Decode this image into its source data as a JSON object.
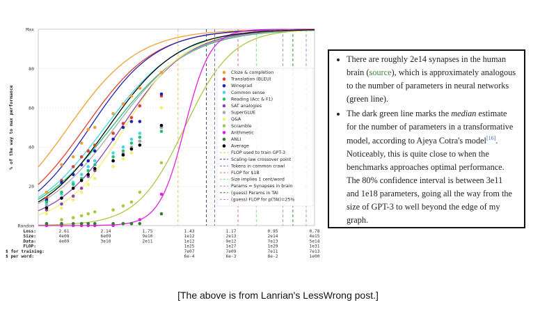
{
  "chart_data": {
    "type": "scatter",
    "ylabel": "% of the way to max performance",
    "y_ticks": [
      "20",
      "40",
      "60",
      "80"
    ],
    "y_top_label": "Max",
    "y_bottom_label": "Random",
    "ylim": [
      0,
      100
    ],
    "x_rows": [
      {
        "label": "Loss:",
        "values": [
          "2.61",
          "2.14",
          "1.75",
          "1.43",
          "1.17",
          "0.95",
          "0.78"
        ]
      },
      {
        "label": "Size:",
        "values": [
          "4e08",
          "6e09",
          "9e10",
          "1e12",
          "2e13",
          "2e14",
          "4e15"
        ]
      },
      {
        "label": "Data:",
        "values": [
          "4e09",
          "3e10",
          "2e11",
          "1e12",
          "9e12",
          "7e13",
          "5e14"
        ]
      },
      {
        "label": "FLOP:",
        "values": [
          "",
          "",
          "",
          "1e25",
          "1e27",
          "1e29",
          "1e31"
        ]
      },
      {
        "label": "$ for training:",
        "values": [
          "",
          "",
          "",
          "7e07",
          "7e09",
          "7e11",
          "7e13"
        ]
      },
      {
        "label": "$ per word:",
        "values": [
          "",
          "",
          "",
          "6e-4",
          "6e-3",
          "8e-2",
          "1e00"
        ]
      }
    ],
    "series": [
      {
        "name": "Cloze & completion",
        "color": "#f0a030",
        "midpoint": 0.9,
        "steepness": 0.95,
        "points": [
          [
            0.25,
            17
          ],
          [
            0.7,
            31
          ],
          [
            1.05,
            35
          ],
          [
            1.3,
            42
          ],
          [
            1.5,
            49
          ],
          [
            1.7,
            50
          ],
          [
            2.25,
            57
          ],
          [
            2.55,
            62
          ],
          [
            2.8,
            66
          ],
          [
            3.05,
            70
          ],
          [
            3.7,
            78
          ]
        ]
      },
      {
        "name": "Translation (BLEU)",
        "color": "#e04030",
        "midpoint": 1.4,
        "steepness": 0.95,
        "points": [
          [
            0.25,
            14
          ],
          [
            0.7,
            23
          ],
          [
            1.05,
            30
          ],
          [
            1.3,
            35
          ],
          [
            1.5,
            38
          ],
          [
            1.7,
            41
          ],
          [
            2.25,
            47
          ],
          [
            2.55,
            52
          ],
          [
            2.8,
            55
          ],
          [
            3.05,
            61
          ],
          [
            3.7,
            66
          ]
        ]
      },
      {
        "name": "Winograd",
        "color": "#2020b8",
        "midpoint": 1.55,
        "steepness": 1.0,
        "points": [
          [
            0.25,
            13
          ],
          [
            0.7,
            22
          ],
          [
            1.05,
            26
          ],
          [
            1.3,
            31
          ],
          [
            1.5,
            33
          ],
          [
            1.7,
            38
          ],
          [
            2.25,
            44
          ],
          [
            2.55,
            50
          ],
          [
            2.8,
            53
          ],
          [
            3.05,
            53
          ],
          [
            3.7,
            67
          ]
        ]
      },
      {
        "name": "Common sense",
        "color": "#40d8e8",
        "midpoint": 2.0,
        "steepness": 0.9,
        "points": [
          [
            0.25,
            11
          ],
          [
            0.7,
            16
          ],
          [
            1.05,
            22
          ],
          [
            1.3,
            26
          ],
          [
            1.5,
            30
          ],
          [
            1.7,
            33
          ],
          [
            2.25,
            37
          ],
          [
            2.55,
            40
          ],
          [
            2.8,
            44
          ],
          [
            3.05,
            47
          ],
          [
            3.7,
            50
          ]
        ]
      },
      {
        "name": "Reading (Acc & F1)",
        "color": "#28c070",
        "midpoint": 2.2,
        "steepness": 0.85,
        "points": [
          [
            0.25,
            12
          ],
          [
            0.7,
            17
          ],
          [
            1.05,
            21
          ],
          [
            1.3,
            24
          ],
          [
            1.5,
            28
          ],
          [
            1.7,
            31
          ],
          [
            2.25,
            35
          ],
          [
            2.55,
            38
          ],
          [
            2.8,
            42
          ],
          [
            3.05,
            45
          ],
          [
            3.7,
            48
          ]
        ]
      },
      {
        "name": "SAT analogies",
        "color": "#9040b0",
        "midpoint": 2.5,
        "steepness": 1.0,
        "points": [
          [
            0.25,
            8
          ],
          [
            0.7,
            11
          ],
          [
            1.05,
            15
          ],
          [
            1.3,
            19
          ],
          [
            1.5,
            25
          ],
          [
            1.7,
            28
          ],
          [
            2.25,
            33
          ],
          [
            2.55,
            36
          ],
          [
            2.8,
            39
          ],
          [
            3.05,
            43
          ],
          [
            3.7,
            50
          ]
        ]
      },
      {
        "name": "SuperGLUE",
        "color": "#a8a8a8",
        "midpoint": 2.3,
        "steepness": 0.9,
        "points": [
          [
            0.25,
            10
          ],
          [
            0.7,
            14
          ],
          [
            1.05,
            19
          ],
          [
            1.3,
            23
          ],
          [
            1.5,
            26
          ],
          [
            1.7,
            29
          ],
          [
            2.25,
            33
          ],
          [
            2.55,
            37
          ],
          [
            2.8,
            40
          ],
          [
            3.05,
            43
          ],
          [
            3.7,
            50
          ]
        ]
      },
      {
        "name": "Q&A",
        "color": "#f2f070",
        "midpoint": 2.6,
        "steepness": 1.1,
        "points": [
          [
            0.25,
            6
          ],
          [
            0.7,
            9
          ],
          [
            1.05,
            13
          ],
          [
            1.3,
            17
          ],
          [
            1.5,
            21
          ],
          [
            1.7,
            24
          ],
          [
            2.25,
            30
          ],
          [
            2.55,
            34
          ],
          [
            2.8,
            37
          ],
          [
            3.05,
            41
          ],
          [
            3.7,
            60
          ]
        ]
      },
      {
        "name": "Scramble",
        "color": "#a8c840",
        "midpoint": 4.4,
        "steepness": 1.4,
        "points": [
          [
            0.25,
            1
          ],
          [
            0.7,
            3
          ],
          [
            1.05,
            4
          ],
          [
            1.3,
            5
          ],
          [
            1.5,
            6
          ],
          [
            1.7,
            7
          ],
          [
            2.25,
            8
          ],
          [
            2.55,
            10
          ],
          [
            2.8,
            12
          ],
          [
            3.05,
            17
          ],
          [
            3.7,
            32
          ]
        ]
      },
      {
        "name": "Arithmetic",
        "color": "#e020e0",
        "midpoint": 4.4,
        "steepness": 2.6,
        "points": [
          [
            0.25,
            0
          ],
          [
            0.7,
            0
          ],
          [
            1.05,
            0
          ],
          [
            1.3,
            0
          ],
          [
            1.5,
            0
          ],
          [
            1.7,
            0
          ],
          [
            2.25,
            0
          ],
          [
            2.55,
            1
          ],
          [
            2.8,
            1
          ],
          [
            3.05,
            3
          ],
          [
            3.7,
            16
          ]
        ]
      },
      {
        "name": "ANLI",
        "color": "#2e7d32",
        "midpoint": null,
        "steepness": null,
        "points": [
          [
            0.25,
            1
          ],
          [
            0.7,
            1
          ],
          [
            1.05,
            1
          ],
          [
            1.3,
            1
          ],
          [
            1.5,
            1
          ],
          [
            1.7,
            1
          ],
          [
            2.25,
            1
          ],
          [
            2.55,
            1
          ],
          [
            2.8,
            1
          ],
          [
            3.05,
            1
          ],
          [
            3.7,
            6
          ]
        ]
      },
      {
        "name": "Average",
        "color": "#000000",
        "midpoint": 2.1,
        "steepness": 0.95,
        "points": [
          [
            0.25,
            9
          ],
          [
            0.7,
            14
          ],
          [
            1.05,
            19
          ],
          [
            1.3,
            23
          ],
          [
            1.5,
            26
          ],
          [
            1.7,
            29
          ],
          [
            2.25,
            33
          ],
          [
            2.55,
            36
          ],
          [
            2.8,
            39
          ],
          [
            3.05,
            41
          ],
          [
            3.7,
            51
          ]
        ]
      }
    ],
    "vlines": [
      {
        "name": "FLOP used to train GPT-3",
        "color": "#f2c050",
        "x": 4.2
      },
      {
        "name": "Scaling-law crossover point",
        "color": "#404080",
        "x": 5.05
      },
      {
        "name": "Tokens in common crawl",
        "color": "#7070c0",
        "x": 5.3
      },
      {
        "name": "FLOP for $1B",
        "color": "#e07060",
        "x": 6.0
      },
      {
        "name": "Size implies 1 cent/word",
        "color": "#80e080",
        "x": 6.55
      },
      {
        "name": "Params = Synapses in brain",
        "color": "#a0a0a0",
        "x": 7.35
      },
      {
        "name": "(guess) Params in TAI",
        "color": "#2e8b2e",
        "x": 7.65
      },
      {
        "name": "(guess) FLOP for p(TAI)=25%",
        "color": "#c080d0",
        "x": 8.05
      }
    ]
  },
  "notes": {
    "bullet1_a": "There are roughly 2e14 synapses in the human brain (",
    "bullet1_link": "source",
    "bullet1_b": "), which is approximately analogous to the number of parameters in neural networks (green line).",
    "bullet2_a": "The dark green line marks the ",
    "bullet2_em": "median",
    "bullet2_b": " estimate for the number of parameters in a transformative model, according to Ajeya Cotra's model",
    "bullet2_ref": "[16]",
    "bullet2_c": ". Noticeably, this is quite close to when the benchmarks approaches optimal performance. The 80% confidence interval is between 3e11 and 1e18 parameters, going all the way from the size of GPT-3 to well beyond the edge of my graph."
  },
  "caption": "[The above is from Lanrian's LessWrong post.]"
}
